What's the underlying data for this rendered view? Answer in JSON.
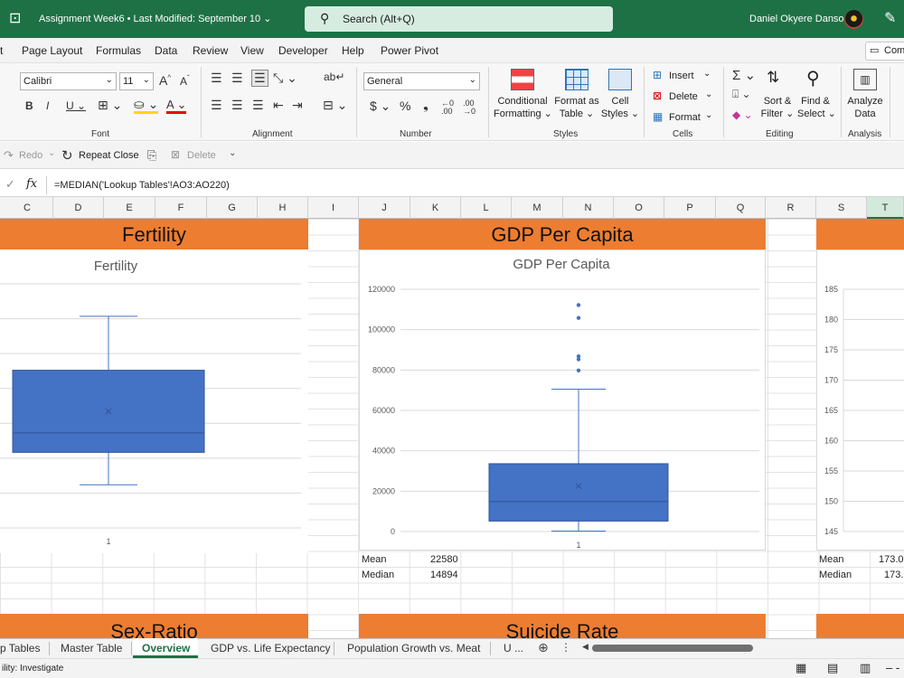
{
  "titlebar": {
    "doc_title": "Assignment Week6  •  Last Modified: September 10 ⌄",
    "search_placeholder": "Search (Alt+Q)",
    "user_name": "Daniel Okyere Danso"
  },
  "menu": {
    "items": [
      "t",
      "Page Layout",
      "Formulas",
      "Data",
      "Review",
      "View",
      "Developer",
      "Help",
      "Power Pivot"
    ],
    "comments_label": "Com"
  },
  "ribbon": {
    "font_name": "Calibri",
    "font_size": "11",
    "number_format": "General",
    "groups": {
      "font": "Font",
      "alignment": "Alignment",
      "number": "Number",
      "styles": "Styles",
      "cells": "Cells",
      "editing": "Editing",
      "analysis": "Analysis"
    },
    "styles": {
      "conditional": "Conditional",
      "formatting": "Formatting ⌄",
      "format_as": "Format as",
      "table": "Table ⌄",
      "cell": "Cell",
      "cell_styles": "Styles ⌄"
    },
    "cells": {
      "insert": "Insert",
      "delete": "Delete",
      "format": "Format"
    },
    "editing": {
      "sort": "Sort &",
      "filter": "Filter ⌄",
      "find": "Find &",
      "select": "Select ⌄"
    },
    "analysis": {
      "analyze": "Analyze",
      "data": "Data"
    }
  },
  "quickbar": {
    "redo": "Redo",
    "repeat_close": "Repeat Close",
    "delete": "Delete"
  },
  "formula_bar": {
    "formula": "=MEDIAN('Lookup Tables'!AO3:AO220)"
  },
  "columns": [
    "C",
    "D",
    "E",
    "F",
    "G",
    "H",
    "I",
    "J",
    "K",
    "L",
    "M",
    "N",
    "O",
    "P",
    "Q",
    "R",
    "S",
    "T"
  ],
  "sections": {
    "fertility": "Fertility",
    "gdp": "GDP Per Capita",
    "sex_ratio": "Sex-Ratio",
    "suicide": "Suicide Rate"
  },
  "stats": {
    "gdp_mean_label": "Mean",
    "gdp_mean": "22580",
    "gdp_median_label": "Median",
    "gdp_median": "14894",
    "right_mean_label": "Mean",
    "right_mean": "173.0",
    "right_median_label": "Median",
    "right_median": "173."
  },
  "sheets": {
    "tabs": [
      "p Tables",
      "Master Table",
      "Overview",
      "GDP vs. Life Expectancy",
      "Population Growth vs. Meat",
      "U ..."
    ],
    "active": "Overview"
  },
  "status": {
    "text": "ility: Investigate"
  },
  "colors": {
    "excel_green": "#1e7145",
    "banner_orange": "#ed7d31",
    "box_blue": "#4472c4"
  },
  "chart_data": [
    {
      "type": "boxplot",
      "title": "Fertility",
      "categories": [
        "1"
      ],
      "whisker_low": 20,
      "q1": 35,
      "median": 44,
      "mean": 54,
      "q3": 73,
      "whisker_high": 98,
      "ylim": [
        0,
        113
      ]
    },
    {
      "type": "boxplot",
      "title": "GDP Per Capita",
      "categories": [
        "1"
      ],
      "yticks": [
        "0",
        "20000",
        "40000",
        "60000",
        "80000",
        "100000",
        "120000"
      ],
      "ylim": [
        0,
        120000
      ],
      "whisker_low": 200,
      "q1": 5200,
      "median": 14894,
      "mean": 22580,
      "q3": 33600,
      "whisker_high": 70500,
      "outliers": [
        79800,
        85300,
        86800,
        105800,
        112200
      ]
    },
    {
      "type": "boxplot",
      "title": "",
      "yticks": [
        "145",
        "150",
        "155",
        "160",
        "165",
        "170",
        "175",
        "180",
        "185"
      ],
      "ylim": [
        145,
        185
      ]
    }
  ]
}
